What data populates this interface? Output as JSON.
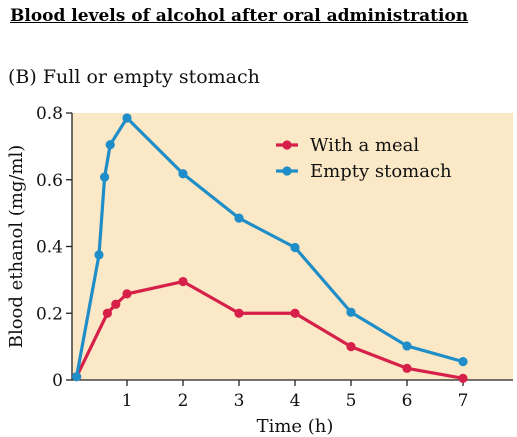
{
  "page_title": "Blood levels of alcohol after oral administration",
  "chart_data": {
    "type": "line",
    "title": "(B)  Full or empty stomach",
    "xlabel": "Time (h)",
    "ylabel": "Blood ethanol (mg/ml)",
    "xlim": [
      0,
      7.9
    ],
    "ylim": [
      0,
      0.8
    ],
    "x_ticks": [
      1,
      2,
      3,
      4,
      5,
      6,
      7
    ],
    "x_tick_labels": [
      "1",
      "2",
      "3",
      "4",
      "5",
      "6",
      "7"
    ],
    "y_ticks": [
      0,
      0.2,
      0.4,
      0.6,
      0.8
    ],
    "y_tick_labels": [
      "0",
      "0.2",
      "0.4",
      "0.6",
      "0.8"
    ],
    "grid": false,
    "background": "#fbe8c6",
    "legend_position": "top-right",
    "series": [
      {
        "name": "With a meal",
        "color": "#d6204a",
        "x": [
          0.1,
          0.65,
          0.8,
          1.0,
          2.0,
          3.0,
          4.0,
          5.0,
          6.0,
          7.0
        ],
        "y": [
          0.01,
          0.2,
          0.227,
          0.258,
          0.295,
          0.2,
          0.2,
          0.1,
          0.035,
          0.005
        ]
      },
      {
        "name": "Empty stomach",
        "color": "#1f8ec8",
        "x": [
          0.1,
          0.5,
          0.6,
          0.7,
          1.0,
          2.0,
          3.0,
          4.0,
          5.0,
          6.0,
          7.0
        ],
        "y": [
          0.01,
          0.375,
          0.608,
          0.705,
          0.785,
          0.618,
          0.485,
          0.397,
          0.203,
          0.102,
          0.055
        ]
      }
    ]
  }
}
